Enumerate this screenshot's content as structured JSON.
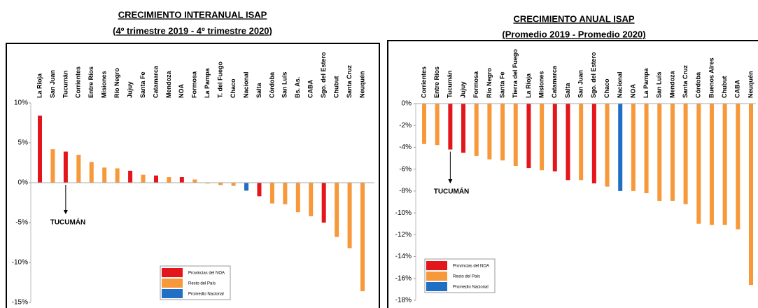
{
  "chart_data": [
    {
      "type": "bar",
      "title": "CRECIMIENTO INTERANUAL ISAP",
      "subtitle": "(4º trimestre 2019 - 4º trimestre 2020)",
      "categories": [
        "La Rioja",
        "San Juan",
        "Tucumán",
        "Corrientes",
        "Entre Ríos",
        "Misiones",
        "Río Negro",
        "Jujuy",
        "Santa Fe",
        "Catamarca",
        "Mendoza",
        "NOA",
        "Formosa",
        "La Pampa",
        "T. del Fuego",
        "Chaco",
        "Nacional",
        "Salta",
        "Córdoba",
        "San Luis",
        "Bs. As.",
        "CABA",
        "Sgo. del Estero",
        "Chubut",
        "Santa Cruz",
        "Neuquén"
      ],
      "values": [
        8.4,
        4.2,
        3.9,
        3.5,
        2.6,
        1.9,
        1.8,
        1.5,
        1.0,
        0.9,
        0.7,
        0.7,
        0.4,
        -0.1,
        -0.3,
        -0.4,
        -1.0,
        -1.7,
        -2.6,
        -2.7,
        -3.7,
        -4.2,
        -5.0,
        -6.8,
        -8.2,
        -13.6
      ],
      "colors": [
        "#e3161c",
        "#f7993b",
        "#e3161c",
        "#f7993b",
        "#f7993b",
        "#f7993b",
        "#f7993b",
        "#e3161c",
        "#f7993b",
        "#e3161c",
        "#f7993b",
        "#e3161c",
        "#f7993b",
        "#f7993b",
        "#f7993b",
        "#f7993b",
        "#1f6fc4",
        "#e3161c",
        "#f7993b",
        "#f7993b",
        "#f7993b",
        "#f7993b",
        "#e3161c",
        "#f7993b",
        "#f7993b",
        "#f7993b"
      ],
      "legend": [
        {
          "name": "Provincias del NOA",
          "color": "#e3161c"
        },
        {
          "name": "Resto del País",
          "color": "#f7993b"
        },
        {
          "name": "Promedio Nacional",
          "color": "#1f6fc4"
        }
      ],
      "annotation": "TUCUMÁN",
      "ylim": [
        -15,
        10
      ],
      "yticks": [
        {
          "value": 10,
          "label": "10%"
        },
        {
          "value": 5,
          "label": "5%"
        },
        {
          "value": 0,
          "label": "0%"
        },
        {
          "value": -5,
          "label": "-5%"
        },
        {
          "value": -10,
          "label": "-10%"
        },
        {
          "value": -15,
          "label": "-15%"
        }
      ]
    },
    {
      "type": "bar",
      "title": "CRECIMIENTO ANUAL ISAP",
      "subtitle": "(Promedio 2019 - Promedio 2020)",
      "categories": [
        "Corrientes",
        "Entre Ríos",
        "Tucumán",
        "Jujuy",
        "Formosa",
        "Río Negro",
        "Santa Fe",
        "Tierra del Fuego",
        "La Rioja",
        "Misiones",
        "Catamarca",
        "Salta",
        "San Juan",
        "Sgo. del Estero",
        "Chaco",
        "Nacional",
        "NOA",
        "La Pampa",
        "San Luis",
        "Mendoza",
        "Santa Cruz",
        "Córdoba",
        "Buenos Aires",
        "Chubut",
        "CABA",
        "Neuquén"
      ],
      "values": [
        -3.7,
        -3.8,
        -4.2,
        -4.5,
        -4.8,
        -5.1,
        -5.2,
        -5.7,
        -5.9,
        -6.1,
        -6.2,
        -7.0,
        -7.0,
        -7.3,
        -7.6,
        -8.0,
        -8.0,
        -8.2,
        -8.9,
        -8.9,
        -9.2,
        -11.0,
        -11.1,
        -11.1,
        -11.5,
        -16.6
      ],
      "colors": [
        "#f7993b",
        "#f7993b",
        "#e3161c",
        "#e3161c",
        "#f7993b",
        "#f7993b",
        "#f7993b",
        "#f7993b",
        "#e3161c",
        "#f7993b",
        "#e3161c",
        "#e3161c",
        "#f7993b",
        "#e3161c",
        "#f7993b",
        "#1f6fc4",
        "#f7993b",
        "#f7993b",
        "#f7993b",
        "#f7993b",
        "#f7993b",
        "#f7993b",
        "#f7993b",
        "#f7993b",
        "#f7993b",
        "#f7993b"
      ],
      "legend": [
        {
          "name": "Provincias del NOA",
          "color": "#e3161c"
        },
        {
          "name": "Resto del País",
          "color": "#f7993b"
        },
        {
          "name": "Promedio Nacional",
          "color": "#1f6fc4"
        }
      ],
      "annotation": "TUCUMÁN",
      "ylim": [
        -18,
        0
      ],
      "yticks": [
        {
          "value": 0,
          "label": "0%"
        },
        {
          "value": -2,
          "label": "-2%"
        },
        {
          "value": -4,
          "label": "-4%"
        },
        {
          "value": -6,
          "label": "-6%"
        },
        {
          "value": -8,
          "label": "-8%"
        },
        {
          "value": -10,
          "label": "-10%"
        },
        {
          "value": -12,
          "label": "-12%"
        },
        {
          "value": -14,
          "label": "-14%"
        },
        {
          "value": -16,
          "label": "-16%"
        },
        {
          "value": -18,
          "label": "-18%"
        }
      ]
    }
  ]
}
